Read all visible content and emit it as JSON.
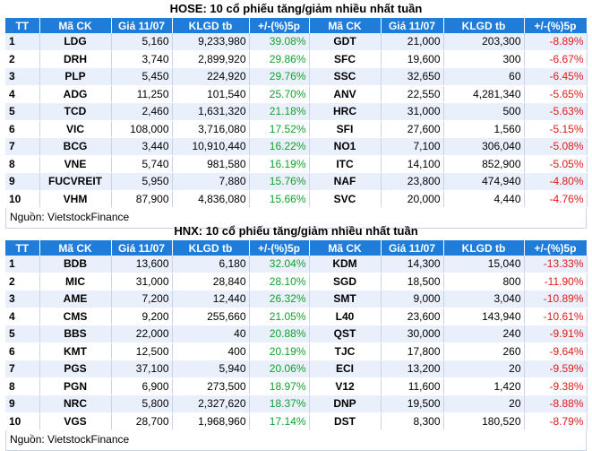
{
  "hose": {
    "title": "HOSE: 10 cổ phiếu tăng/giảm nhiều nhất tuần",
    "headers": [
      "TT",
      "Mã CK",
      "Giá 11/07",
      "KLGD tb",
      "+/-(%)5p",
      "Mã CK",
      "Giá 11/07",
      "KLGD tb",
      "+/-(%)5p"
    ],
    "rows": [
      [
        "1",
        "LDG",
        "5,160",
        "9,233,980",
        "39.08%",
        "GDT",
        "21,000",
        "203,300",
        "-8.89%"
      ],
      [
        "2",
        "DRH",
        "3,740",
        "2,899,920",
        "29.86%",
        "SFC",
        "19,600",
        "300",
        "-6.67%"
      ],
      [
        "3",
        "PLP",
        "5,450",
        "224,920",
        "29.76%",
        "SSC",
        "32,650",
        "60",
        "-6.45%"
      ],
      [
        "4",
        "ADG",
        "11,250",
        "101,540",
        "25.70%",
        "ANV",
        "22,550",
        "4,281,340",
        "-5.65%"
      ],
      [
        "5",
        "TCD",
        "2,460",
        "1,631,320",
        "21.18%",
        "HRC",
        "31,000",
        "500",
        "-5.63%"
      ],
      [
        "6",
        "VIC",
        "108,000",
        "3,716,080",
        "17.52%",
        "SFI",
        "27,600",
        "1,560",
        "-5.15%"
      ],
      [
        "7",
        "BCG",
        "3,440",
        "10,910,440",
        "16.22%",
        "NO1",
        "7,100",
        "306,040",
        "-5.08%"
      ],
      [
        "8",
        "VNE",
        "5,740",
        "981,580",
        "16.19%",
        "ITC",
        "14,100",
        "852,900",
        "-5.05%"
      ],
      [
        "9",
        "FUCVREIT",
        "5,950",
        "7,880",
        "15.76%",
        "NAF",
        "23,800",
        "474,940",
        "-4.80%"
      ],
      [
        "10",
        "VHM",
        "87,900",
        "4,836,080",
        "15.66%",
        "SVC",
        "20,000",
        "4,440",
        "-4.76%"
      ]
    ],
    "source": "Nguồn: VietstockFinance"
  },
  "hnx": {
    "title": "HNX: 10 cổ phiếu tăng/giảm nhiều nhất tuần",
    "headers": [
      "TT",
      "Mã CK",
      "Giá 11/07",
      "KLGD tb",
      "+/-(%)5p",
      "Mã CK",
      "Giá 11/07",
      "KLGD tb",
      "+/-(%)5p"
    ],
    "rows": [
      [
        "1",
        "BDB",
        "13,600",
        "6,180",
        "32.04%",
        "KDM",
        "14,300",
        "15,040",
        "-13.33%"
      ],
      [
        "2",
        "MIC",
        "31,000",
        "28,840",
        "28.10%",
        "SGD",
        "18,500",
        "800",
        "-11.90%"
      ],
      [
        "3",
        "AME",
        "7,200",
        "12,440",
        "26.32%",
        "SMT",
        "9,000",
        "3,040",
        "-10.89%"
      ],
      [
        "4",
        "CMS",
        "9,200",
        "255,660",
        "21.05%",
        "L40",
        "23,600",
        "143,940",
        "-10.61%"
      ],
      [
        "5",
        "BBS",
        "22,000",
        "40",
        "20.88%",
        "QST",
        "30,000",
        "240",
        "-9.91%"
      ],
      [
        "6",
        "KMT",
        "12,500",
        "400",
        "20.19%",
        "TJC",
        "17,800",
        "260",
        "-9.64%"
      ],
      [
        "7",
        "PGS",
        "37,100",
        "5,940",
        "20.06%",
        "ECI",
        "13,200",
        "20",
        "-9.59%"
      ],
      [
        "8",
        "PGN",
        "6,900",
        "273,500",
        "18.97%",
        "V12",
        "11,600",
        "1,420",
        "-9.38%"
      ],
      [
        "9",
        "NRC",
        "5,800",
        "2,327,620",
        "18.37%",
        "DNP",
        "19,500",
        "20",
        "-8.88%"
      ],
      [
        "10",
        "VGS",
        "28,700",
        "1,968,960",
        "17.14%",
        "DST",
        "8,300",
        "180,520",
        "-8.79%"
      ]
    ],
    "source": "Nguồn: VietstockFinance"
  },
  "colors": {
    "header_bg": "#1f7cd9",
    "up": "#0fa32b",
    "down": "#e01b1b",
    "row_alt": "#eaf0fb"
  }
}
